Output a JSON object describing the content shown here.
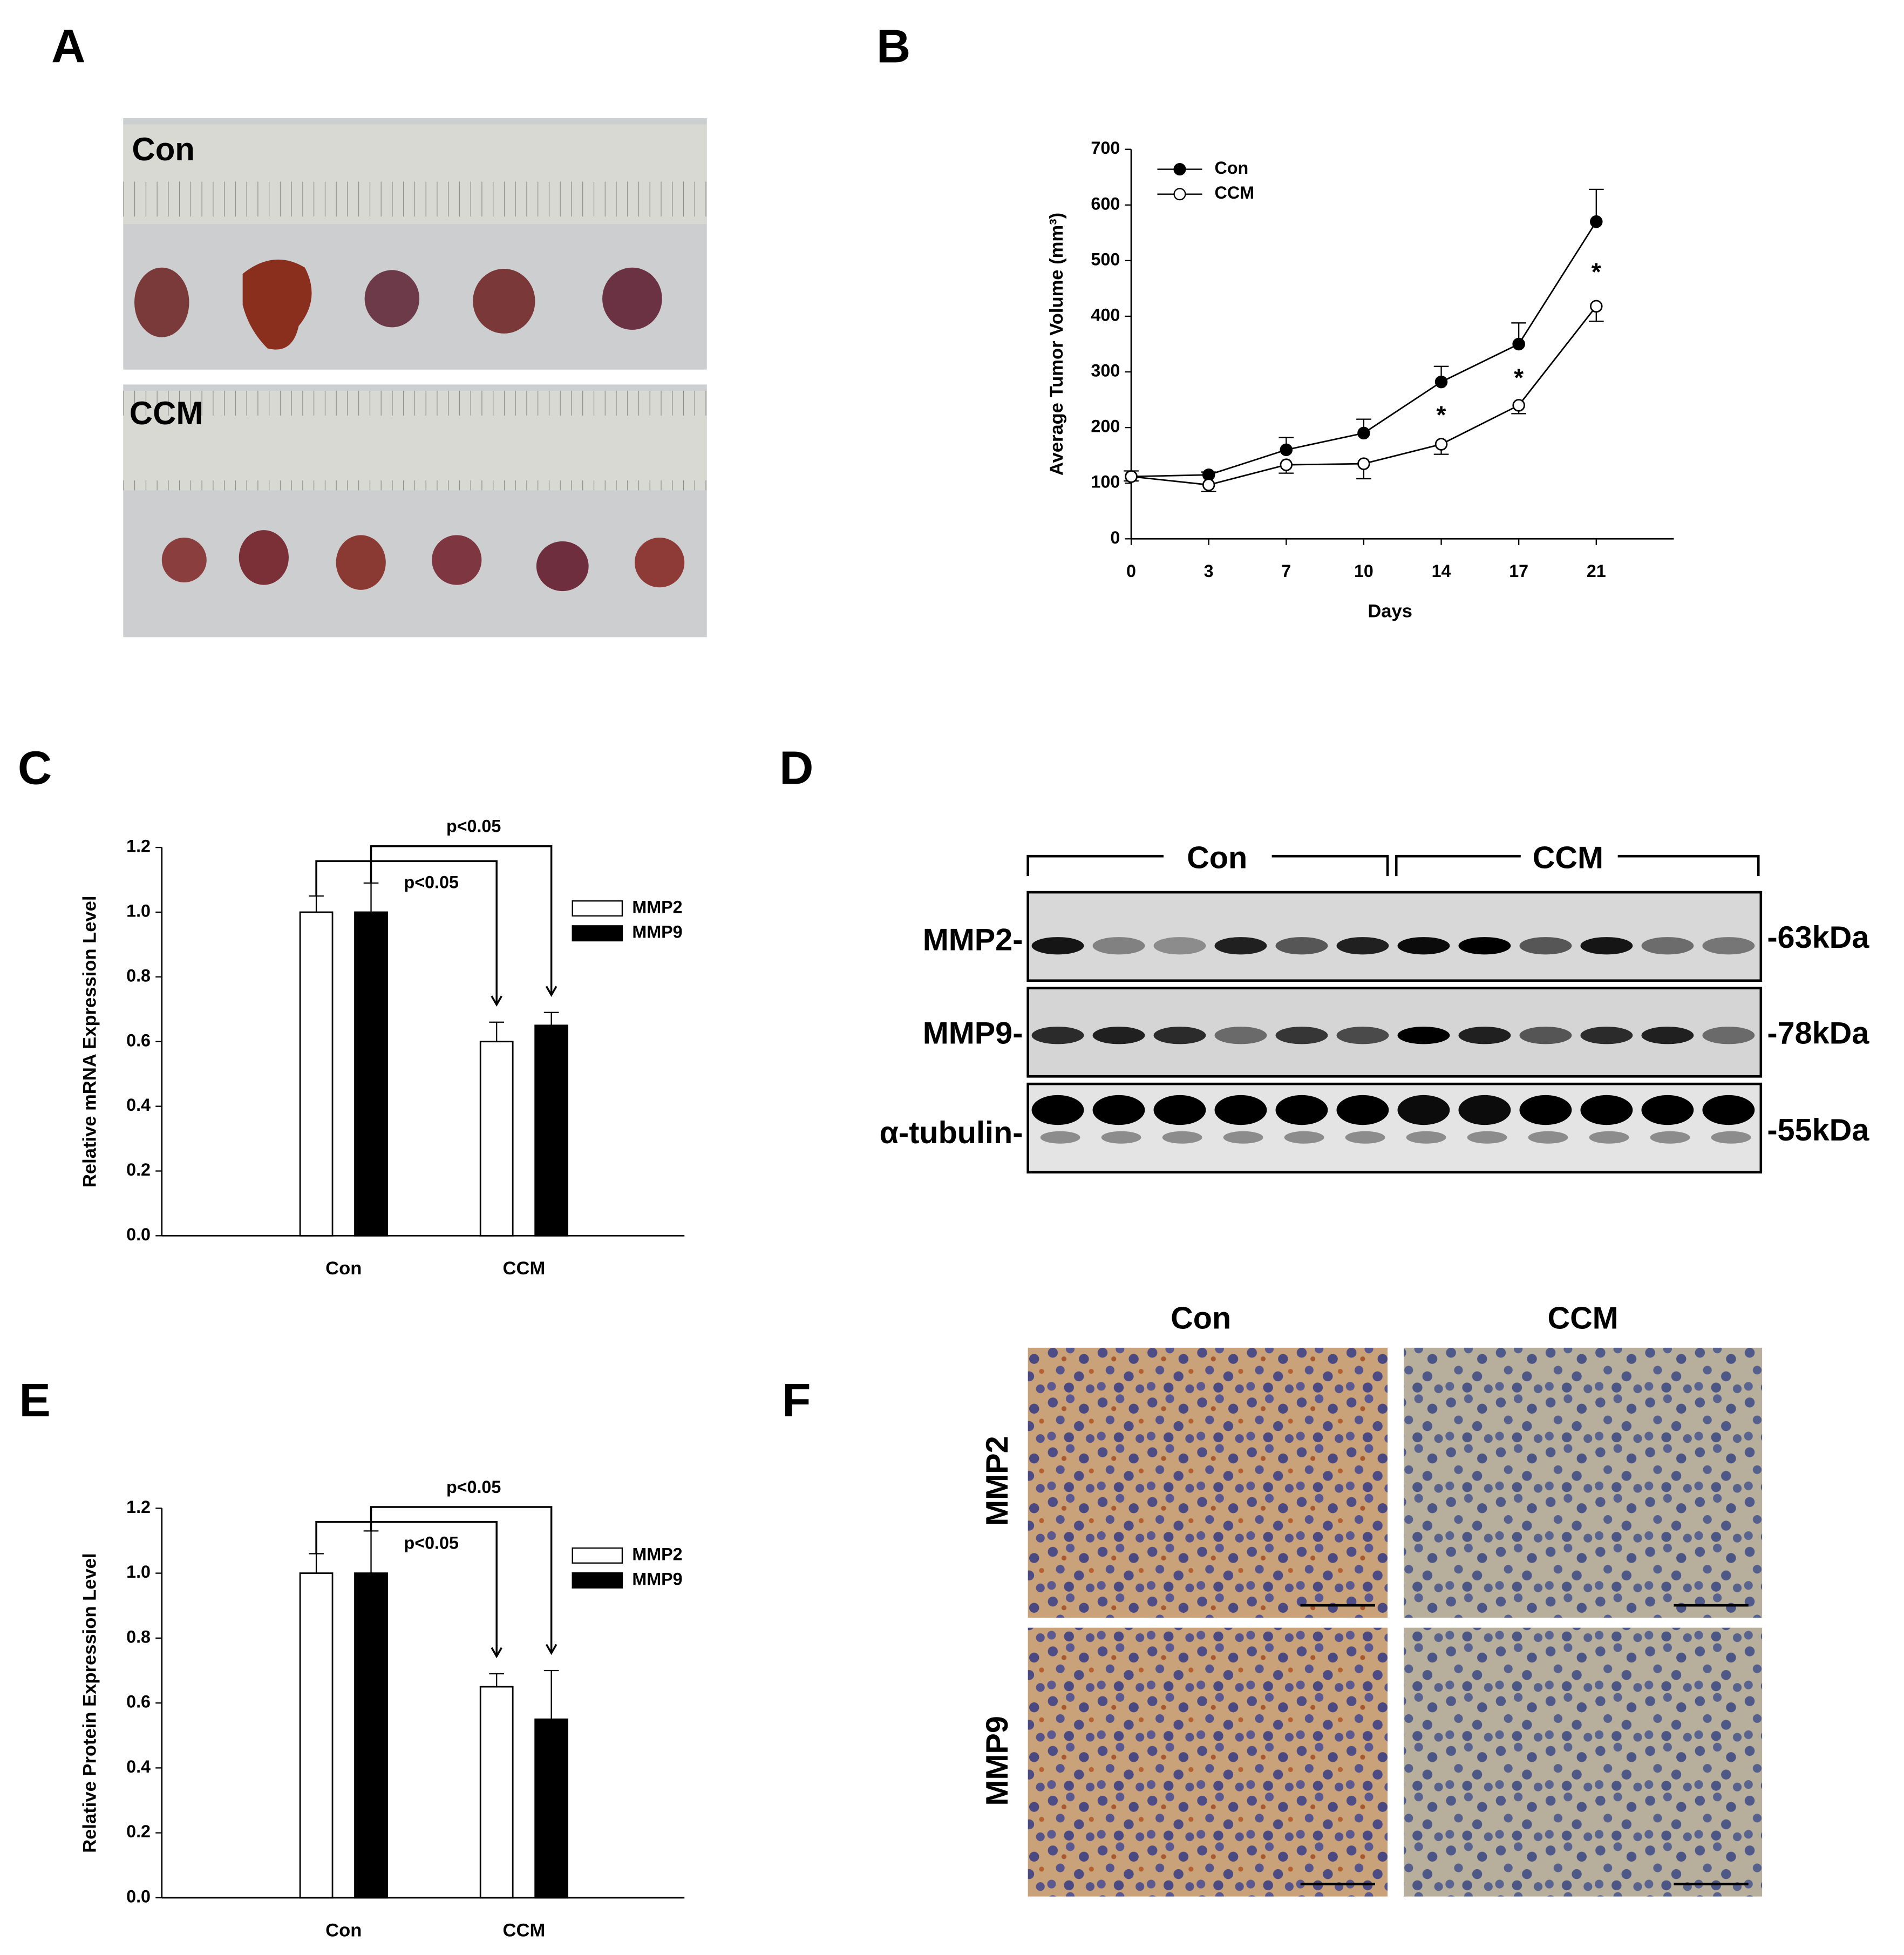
{
  "panel_labels": [
    "A",
    "B",
    "C",
    "D",
    "E",
    "F"
  ],
  "photos": {
    "groups": [
      "Con",
      "CCM"
    ]
  },
  "blot": {
    "groups": [
      "Con",
      "CCM"
    ],
    "rows": [
      {
        "label": "MMP2-",
        "size": "-63kDa"
      },
      {
        "label": "MMP9-",
        "size": "-78kDa"
      },
      {
        "label": "α-tubulin-",
        "size": "-55kDa"
      }
    ]
  },
  "ihc": {
    "columns": [
      "Con",
      "CCM"
    ],
    "rows": [
      "MMP2",
      "MMP9"
    ]
  },
  "chart_data": [
    {
      "type": "line",
      "ylabel": "Average Tumor Volume (mm³)",
      "xlabel": "Days",
      "categories": [
        "0",
        "3",
        "7",
        "10",
        "14",
        "17",
        "21"
      ],
      "ylim": [
        0,
        700
      ],
      "yticks": [
        0,
        100,
        200,
        300,
        400,
        500,
        600,
        700
      ],
      "legend": "top-left",
      "series": [
        {
          "name": "Con",
          "color": "#000000",
          "values": [
            112,
            115,
            160,
            190,
            282,
            350,
            570
          ],
          "errors": [
            10,
            5,
            22,
            25,
            28,
            38,
            58
          ]
        },
        {
          "name": "CCM",
          "color": "#ffffff",
          "values": [
            112,
            97,
            133,
            135,
            170,
            240,
            418
          ],
          "errors": [
            8,
            12,
            15,
            27,
            18,
            15,
            27
          ],
          "labels": [
            null,
            null,
            null,
            null,
            "*",
            "*",
            "*"
          ]
        }
      ]
    },
    {
      "type": "bar",
      "ylabel": "Relative mRNA Expression Level",
      "categories": [
        "Con",
        "CCM"
      ],
      "ylim": [
        0,
        1.2
      ],
      "yticks": [
        {
          "value": 0,
          "label": "0.0"
        },
        0.2,
        0.4,
        0.6,
        0.8,
        {
          "value": 1,
          "label": "1.0"
        },
        1.2
      ],
      "legend": "top-right",
      "series": [
        {
          "name": "MMP2",
          "color": "#ffffff",
          "values": [
            1.0,
            0.6
          ],
          "errors": [
            0.05,
            0.06
          ]
        },
        {
          "name": "MMP9",
          "color": "#000000",
          "values": [
            1.0,
            0.65
          ],
          "errors": [
            0.09,
            0.04
          ]
        }
      ],
      "annotations": [
        "p<0.05",
        "p<0.05"
      ]
    },
    {
      "type": "bar",
      "ylabel": "Relative Protein Expression Level",
      "categories": [
        "Con",
        "CCM"
      ],
      "ylim": [
        0,
        1.2
      ],
      "yticks": [
        {
          "value": 0,
          "label": "0.0"
        },
        0.2,
        0.4,
        0.6,
        0.8,
        {
          "value": 1,
          "label": "1.0"
        },
        1.2
      ],
      "legend": "top-right",
      "series": [
        {
          "name": "MMP2",
          "color": "#ffffff",
          "values": [
            1.0,
            0.65
          ],
          "errors": [
            0.06,
            0.04
          ]
        },
        {
          "name": "MMP9",
          "color": "#000000",
          "values": [
            1.0,
            0.55
          ],
          "errors": [
            0.13,
            0.15
          ]
        }
      ],
      "annotations": [
        "p<0.05",
        "p<0.05"
      ]
    }
  ]
}
